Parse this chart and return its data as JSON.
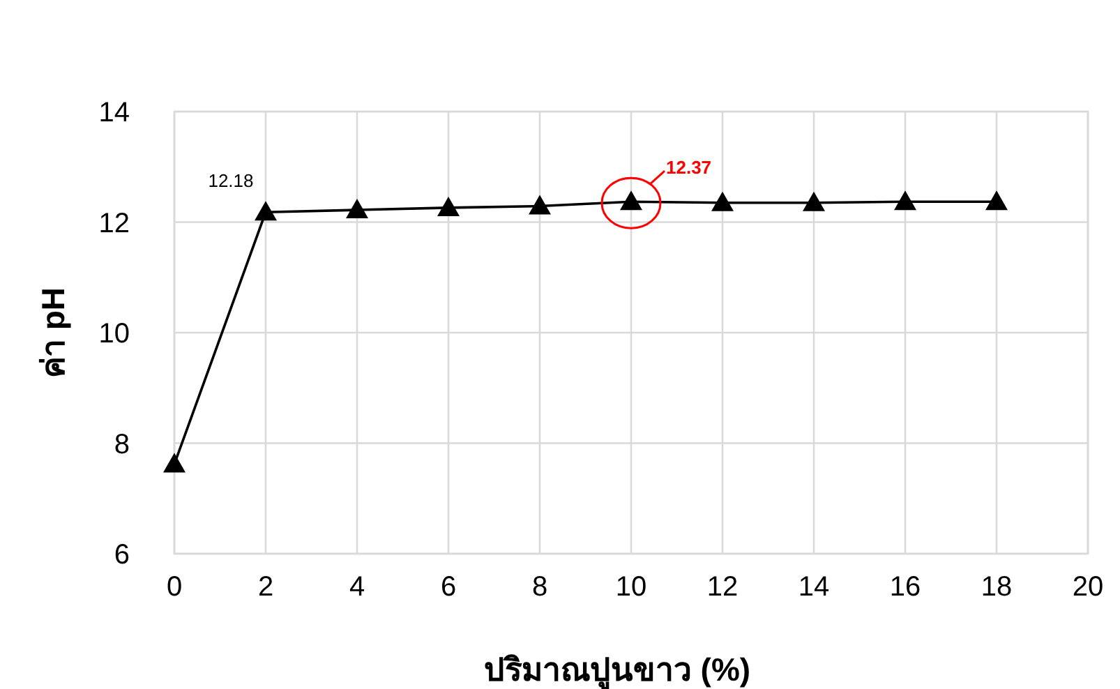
{
  "chart_data": {
    "type": "line",
    "xlabel": "ปริมาณปูนขาว (%)",
    "ylabel": "ค่า pH",
    "x": [
      0,
      2,
      4,
      6,
      8,
      10,
      12,
      14,
      16,
      18
    ],
    "series": [
      {
        "color": "#000000",
        "values": [
          7.62,
          12.18,
          12.22,
          12.26,
          12.29,
          12.37,
          12.35,
          12.35,
          12.37,
          12.37
        ]
      }
    ],
    "xlim": [
      0,
      20
    ],
    "xticks": [
      0,
      2,
      4,
      6,
      8,
      10,
      12,
      14,
      16,
      18,
      20
    ],
    "ylim": [
      6,
      14
    ],
    "yticks": [
      6,
      8,
      10,
      12,
      14
    ],
    "grid": true,
    "marker": "triangle",
    "line_style": "solid",
    "annotations": [
      {
        "text": "12.18",
        "x": 2,
        "y": 12.18
      },
      {
        "text": "12.37",
        "x": 10,
        "y": 12.37
      }
    ]
  }
}
